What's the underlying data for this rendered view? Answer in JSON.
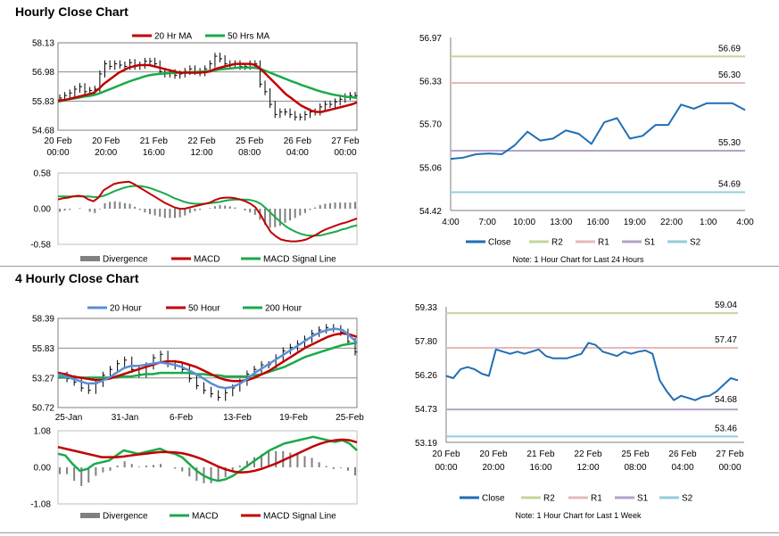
{
  "titles": {
    "hourly": "Hourly Close Chart",
    "four_hourly": "4 Hourly Close Chart"
  },
  "colors": {
    "price": "#000000",
    "red": "#c00000",
    "green": "#1aaa4a",
    "blue": "#5b8ed6",
    "divergence": "#808080",
    "close": "#1f6eb5",
    "R2": "#c3d69b",
    "R1": "#e6b9b8",
    "S1": "#b3a2c7",
    "S2": "#93cddd"
  },
  "chart_data": [
    {
      "id": "hourly-price",
      "type": "line",
      "legend": [
        "20 Hr MA",
        "50 Hrs MA"
      ],
      "yticks": [
        "58.13",
        "56.98",
        "55.83",
        "54.68"
      ],
      "ylim": [
        54.68,
        58.13
      ],
      "xticks": [
        [
          "20 Feb",
          "00:00"
        ],
        [
          "20 Feb",
          "20:00"
        ],
        [
          "21 Feb",
          "16:00"
        ],
        [
          "22 Feb",
          "12:00"
        ],
        [
          "25 Feb",
          "08:00"
        ],
        [
          "26 Feb",
          "04:00"
        ],
        [
          "27 Feb",
          "00:00"
        ]
      ],
      "series": [
        {
          "name": "Close",
          "values": [
            55.95,
            56.05,
            56.15,
            56.3,
            56.4,
            56.2,
            56.25,
            56.3,
            56.9,
            57.3,
            57.2,
            57.3,
            57.25,
            57.2,
            57.35,
            57.2,
            57.25,
            57.4,
            57.4,
            57.3,
            57.0,
            56.9,
            56.95,
            56.85,
            56.9,
            57.0,
            57.1,
            57.0,
            56.95,
            57.1,
            57.3,
            57.6,
            57.5,
            57.3,
            57.25,
            57.3,
            57.2,
            57.2,
            57.3,
            57.3,
            56.5,
            56.2,
            55.7,
            55.3,
            55.4,
            55.4,
            55.3,
            55.2,
            55.2,
            55.3,
            55.4,
            55.4,
            55.6,
            55.7,
            55.7,
            55.8,
            55.9,
            56.0,
            56.05,
            56.05
          ]
        },
        {
          "name": "20 Hr MA",
          "values": [
            55.85,
            55.87,
            55.9,
            55.95,
            56.0,
            56.05,
            56.1,
            56.15,
            56.3,
            56.5,
            56.65,
            56.8,
            56.95,
            57.05,
            57.15,
            57.2,
            57.25,
            57.25,
            57.25,
            57.2,
            57.15,
            57.1,
            57.05,
            57.0,
            56.95,
            56.95,
            56.95,
            56.95,
            56.95,
            56.97,
            57.0,
            57.1,
            57.15,
            57.2,
            57.25,
            57.3,
            57.3,
            57.3,
            57.3,
            57.25,
            57.1,
            56.9,
            56.7,
            56.5,
            56.3,
            56.1,
            55.95,
            55.8,
            55.65,
            55.55,
            55.45,
            55.4,
            55.4,
            55.45,
            55.5,
            55.55,
            55.6,
            55.65,
            55.7,
            55.78
          ]
        },
        {
          "name": "50 Hrs MA",
          "values": [
            55.8,
            55.85,
            55.9,
            55.93,
            55.96,
            56.0,
            56.03,
            56.06,
            56.12,
            56.2,
            56.28,
            56.36,
            56.44,
            56.52,
            56.6,
            56.67,
            56.73,
            56.8,
            56.85,
            56.88,
            56.9,
            56.92,
            56.93,
            56.94,
            56.95,
            56.96,
            56.97,
            56.98,
            56.99,
            57.0,
            57.02,
            57.05,
            57.08,
            57.1,
            57.12,
            57.14,
            57.15,
            57.15,
            57.15,
            57.14,
            57.1,
            57.02,
            56.94,
            56.86,
            56.78,
            56.7,
            56.62,
            56.55,
            56.47,
            56.4,
            56.33,
            56.26,
            56.2,
            56.15,
            56.1,
            56.06,
            56.03,
            56.0,
            55.98,
            55.97
          ]
        }
      ]
    },
    {
      "id": "hourly-macd",
      "type": "line",
      "legend": [
        "Divergence",
        "MACD",
        "MACD Signal Line"
      ],
      "yticks": [
        "0.58",
        "0.00",
        "-0.58"
      ],
      "ylim": [
        -0.58,
        0.58
      ],
      "series": [
        {
          "name": "MACD",
          "values": [
            0.15,
            0.17,
            0.18,
            0.2,
            0.21,
            0.2,
            0.15,
            0.12,
            0.18,
            0.3,
            0.35,
            0.4,
            0.42,
            0.43,
            0.44,
            0.4,
            0.35,
            0.3,
            0.25,
            0.2,
            0.15,
            0.1,
            0.06,
            0.02,
            0.0,
            0.0,
            0.02,
            0.04,
            0.06,
            0.08,
            0.1,
            0.14,
            0.17,
            0.18,
            0.18,
            0.17,
            0.15,
            0.12,
            0.08,
            0.02,
            -0.1,
            -0.25,
            -0.38,
            -0.45,
            -0.5,
            -0.52,
            -0.53,
            -0.53,
            -0.52,
            -0.5,
            -0.46,
            -0.42,
            -0.37,
            -0.33,
            -0.3,
            -0.27,
            -0.24,
            -0.22,
            -0.19,
            -0.16
          ]
        },
        {
          "name": "MACD Signal Line",
          "values": [
            0.2,
            0.2,
            0.2,
            0.2,
            0.2,
            0.2,
            0.2,
            0.19,
            0.19,
            0.21,
            0.24,
            0.28,
            0.31,
            0.34,
            0.36,
            0.37,
            0.37,
            0.36,
            0.34,
            0.31,
            0.28,
            0.25,
            0.21,
            0.17,
            0.14,
            0.11,
            0.09,
            0.08,
            0.08,
            0.08,
            0.09,
            0.1,
            0.11,
            0.13,
            0.14,
            0.15,
            0.15,
            0.15,
            0.14,
            0.12,
            0.08,
            0.01,
            -0.07,
            -0.15,
            -0.22,
            -0.29,
            -0.34,
            -0.38,
            -0.41,
            -0.43,
            -0.44,
            -0.44,
            -0.43,
            -0.41,
            -0.39,
            -0.37,
            -0.34,
            -0.32,
            -0.29,
            -0.27
          ]
        }
      ]
    },
    {
      "id": "hourly-pivot",
      "type": "line",
      "legend": [
        "Close",
        "R2",
        "R1",
        "S1",
        "S2"
      ],
      "note": "Note: 1 Hour Chart for Last 24 Hours",
      "yticks": [
        "56.97",
        "56.33",
        "55.70",
        "55.06",
        "54.42"
      ],
      "ylim": [
        54.42,
        56.97
      ],
      "xticks": [
        "4:00",
        "7:00",
        "10:00",
        "13:00",
        "16:00",
        "19:00",
        "22:00",
        "1:00",
        "4:00"
      ],
      "levels": [
        {
          "name": "R2",
          "value": 56.69,
          "label": "56.69"
        },
        {
          "name": "R1",
          "value": 56.3,
          "label": "56.30"
        },
        {
          "name": "S1",
          "value": 55.3,
          "label": "55.30"
        },
        {
          "name": "S2",
          "value": 54.69,
          "label": "54.69"
        }
      ],
      "series": [
        {
          "name": "Close",
          "values": [
            55.18,
            55.2,
            55.25,
            55.26,
            55.25,
            55.38,
            55.58,
            55.45,
            55.48,
            55.6,
            55.55,
            55.4,
            55.72,
            55.78,
            55.48,
            55.52,
            55.68,
            55.68,
            55.98,
            55.92,
            56.0,
            56.0,
            56.0,
            55.9
          ]
        }
      ]
    },
    {
      "id": "four-hourly-price",
      "type": "line",
      "legend": [
        "20 Hour",
        "50 Hour",
        "200 Hour"
      ],
      "yticks": [
        "58.39",
        "55.83",
        "53.27",
        "50.72"
      ],
      "ylim": [
        50.72,
        58.39
      ],
      "xticks": [
        "25-Jan",
        "31-Jan",
        "6-Feb",
        "13-Feb",
        "19-Feb",
        "25-Feb"
      ],
      "series": [
        {
          "name": "Close",
          "values": [
            53.5,
            53.2,
            52.9,
            52.4,
            52.2,
            52.8,
            53.5,
            54.0,
            54.5,
            54.8,
            54.0,
            53.6,
            54.3,
            55.0,
            55.3,
            54.5,
            54.3,
            54.0,
            53.2,
            52.6,
            52.2,
            51.9,
            51.6,
            52.0,
            52.4,
            52.9,
            53.6,
            54.0,
            54.4,
            54.4,
            55.0,
            55.6,
            55.9,
            56.2,
            56.6,
            57.1,
            57.4,
            57.6,
            57.5,
            57.2,
            56.4,
            55.5
          ]
        },
        {
          "name": "20 Hour",
          "values": [
            53.6,
            53.4,
            53.2,
            53.0,
            52.8,
            52.8,
            53.0,
            53.3,
            53.7,
            54.1,
            54.3,
            54.3,
            54.4,
            54.5,
            54.6,
            54.5,
            54.4,
            54.2,
            53.9,
            53.6,
            53.2,
            52.8,
            52.5,
            52.4,
            52.5,
            52.8,
            53.2,
            53.7,
            54.1,
            54.5,
            54.9,
            55.3,
            55.7,
            56.1,
            56.5,
            56.9,
            57.2,
            57.4,
            57.5,
            57.4,
            56.9,
            56.3
          ]
        },
        {
          "name": "50 Hour",
          "values": [
            53.7,
            53.6,
            53.4,
            53.3,
            53.2,
            53.1,
            53.1,
            53.2,
            53.4,
            53.6,
            53.8,
            54.0,
            54.2,
            54.4,
            54.6,
            54.7,
            54.7,
            54.6,
            54.4,
            54.2,
            53.9,
            53.6,
            53.3,
            53.1,
            53.0,
            53.0,
            53.1,
            53.3,
            53.6,
            53.9,
            54.3,
            54.7,
            55.1,
            55.5,
            55.9,
            56.2,
            56.5,
            56.8,
            57.0,
            57.1,
            57.0,
            56.8
          ]
        },
        {
          "name": "200 Hour",
          "values": [
            53.3,
            53.3,
            53.3,
            53.3,
            53.3,
            53.3,
            53.3,
            53.3,
            53.3,
            53.4,
            53.4,
            53.5,
            53.6,
            53.6,
            53.7,
            53.7,
            53.7,
            53.7,
            53.7,
            53.6,
            53.6,
            53.5,
            53.5,
            53.4,
            53.4,
            53.4,
            53.4,
            53.5,
            53.6,
            53.8,
            54.0,
            54.2,
            54.5,
            54.8,
            55.1,
            55.3,
            55.5,
            55.7,
            55.9,
            56.1,
            56.2,
            56.3
          ]
        }
      ]
    },
    {
      "id": "four-hourly-macd",
      "type": "line",
      "legend": [
        "Divergence",
        "MACD",
        "MACD Signal Line"
      ],
      "yticks": [
        "1.08",
        "0.00",
        "-1.08"
      ],
      "ylim": [
        -1.08,
        1.08
      ],
      "series": [
        {
          "name": "MACD",
          "values": [
            0.4,
            0.35,
            0.1,
            -0.1,
            -0.05,
            0.1,
            0.15,
            0.2,
            0.35,
            0.5,
            0.45,
            0.4,
            0.45,
            0.5,
            0.55,
            0.45,
            0.4,
            0.3,
            0.1,
            -0.1,
            -0.25,
            -0.35,
            -0.4,
            -0.35,
            -0.25,
            -0.1,
            0.05,
            0.2,
            0.35,
            0.5,
            0.6,
            0.7,
            0.75,
            0.8,
            0.85,
            0.9,
            0.85,
            0.8,
            0.75,
            0.8,
            0.7,
            0.5
          ]
        },
        {
          "name": "MACD Signal Line",
          "values": [
            0.6,
            0.55,
            0.5,
            0.45,
            0.4,
            0.35,
            0.3,
            0.3,
            0.3,
            0.32,
            0.35,
            0.38,
            0.4,
            0.43,
            0.45,
            0.45,
            0.44,
            0.42,
            0.37,
            0.3,
            0.22,
            0.12,
            0.02,
            -0.06,
            -0.12,
            -0.15,
            -0.14,
            -0.1,
            -0.04,
            0.04,
            0.12,
            0.22,
            0.32,
            0.42,
            0.52,
            0.62,
            0.7,
            0.76,
            0.8,
            0.82,
            0.8,
            0.74
          ]
        }
      ]
    },
    {
      "id": "four-hourly-pivot",
      "type": "line",
      "legend": [
        "Close",
        "R2",
        "R1",
        "S1",
        "S2"
      ],
      "note": "Note: 1 Hour Chart for Last 1 Week",
      "yticks": [
        "59.33",
        "57.80",
        "56.26",
        "54.73",
        "53.19"
      ],
      "ylim": [
        53.19,
        59.33
      ],
      "xticks": [
        [
          "20 Feb",
          "00:00"
        ],
        [
          "20 Feb",
          "20:00"
        ],
        [
          "21 Feb",
          "16:00"
        ],
        [
          "22 Feb",
          "12:00"
        ],
        [
          "25 Feb",
          "08:00"
        ],
        [
          "26 Feb",
          "04:00"
        ],
        [
          "27 Feb",
          "00:00"
        ]
      ],
      "levels": [
        {
          "name": "R2",
          "value": 59.04,
          "label": "59.04"
        },
        {
          "name": "R1",
          "value": 57.47,
          "label": "57.47"
        },
        {
          "name": "S1",
          "value": 54.68,
          "label": "54.68"
        },
        {
          "name": "S2",
          "value": 53.46,
          "label": "53.46"
        }
      ],
      "series": [
        {
          "name": "Close",
          "values": [
            56.2,
            56.1,
            56.5,
            56.6,
            56.5,
            56.3,
            56.2,
            57.4,
            57.3,
            57.2,
            57.3,
            57.2,
            57.3,
            57.4,
            57.1,
            57.0,
            57.0,
            57.0,
            57.1,
            57.2,
            57.7,
            57.6,
            57.3,
            57.2,
            57.1,
            57.3,
            57.2,
            57.3,
            57.35,
            57.2,
            56.0,
            55.5,
            55.1,
            55.3,
            55.2,
            55.1,
            55.25,
            55.3,
            55.5,
            55.8,
            56.1,
            56.0
          ]
        }
      ]
    }
  ]
}
